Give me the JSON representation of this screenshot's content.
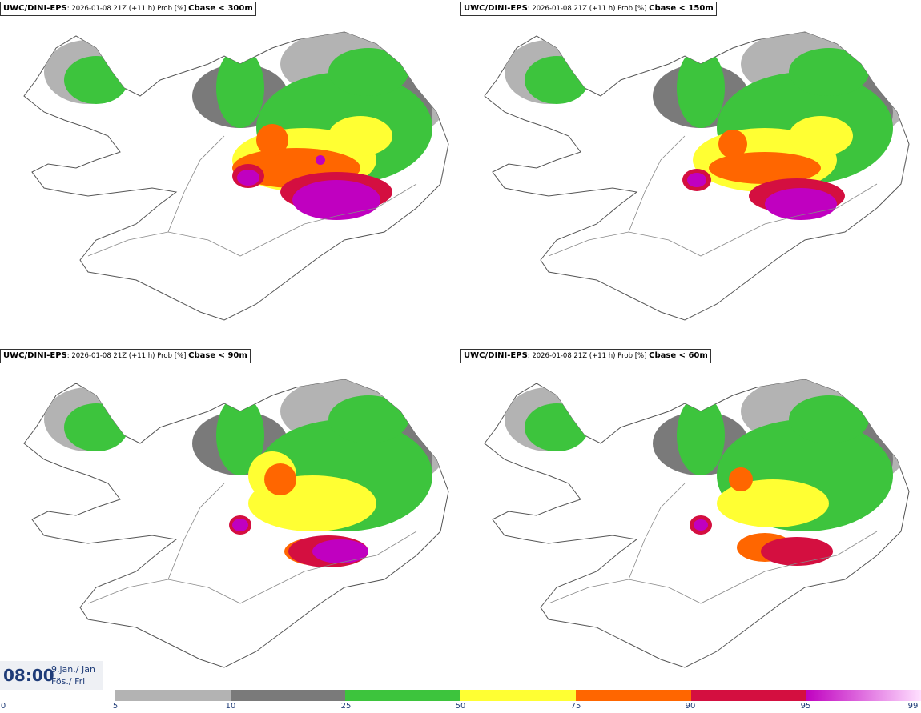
{
  "panels": [
    {
      "model": "UWC/DINI-EPS",
      "meta": ": 2026-01-08 21Z (+11 h) Prob [%] ",
      "field": "Cbase < 300m"
    },
    {
      "model": "UWC/DINI-EPS",
      "meta": ": 2026-01-08 21Z (+11 h) Prob [%] ",
      "field": "Cbase < 150m"
    },
    {
      "model": "UWC/DINI-EPS",
      "meta": ": 2026-01-08 21Z (+11 h) Prob [%] ",
      "field": "Cbase < 90m"
    },
    {
      "model": "UWC/DINI-EPS",
      "meta": ": 2026-01-08 21Z (+11 h) Prob [%] ",
      "field": "Cbase < 60m"
    }
  ],
  "valid_time": {
    "time": "08:00",
    "date_line1": "9.jan./ Jan",
    "date_line2": "Fös./ Fri"
  },
  "legend": {
    "ticks": [
      "0",
      "5",
      "10",
      "25",
      "50",
      "75",
      "90",
      "95",
      "99"
    ],
    "colors": [
      "#b3b3b3",
      "#7a7a7a",
      "#3dc43d",
      "#ffff33",
      "#ff6600",
      "#d40f40",
      "#c000c0"
    ]
  },
  "map_colors": {
    "land_outline": "#555555",
    "roads": "#888888"
  }
}
